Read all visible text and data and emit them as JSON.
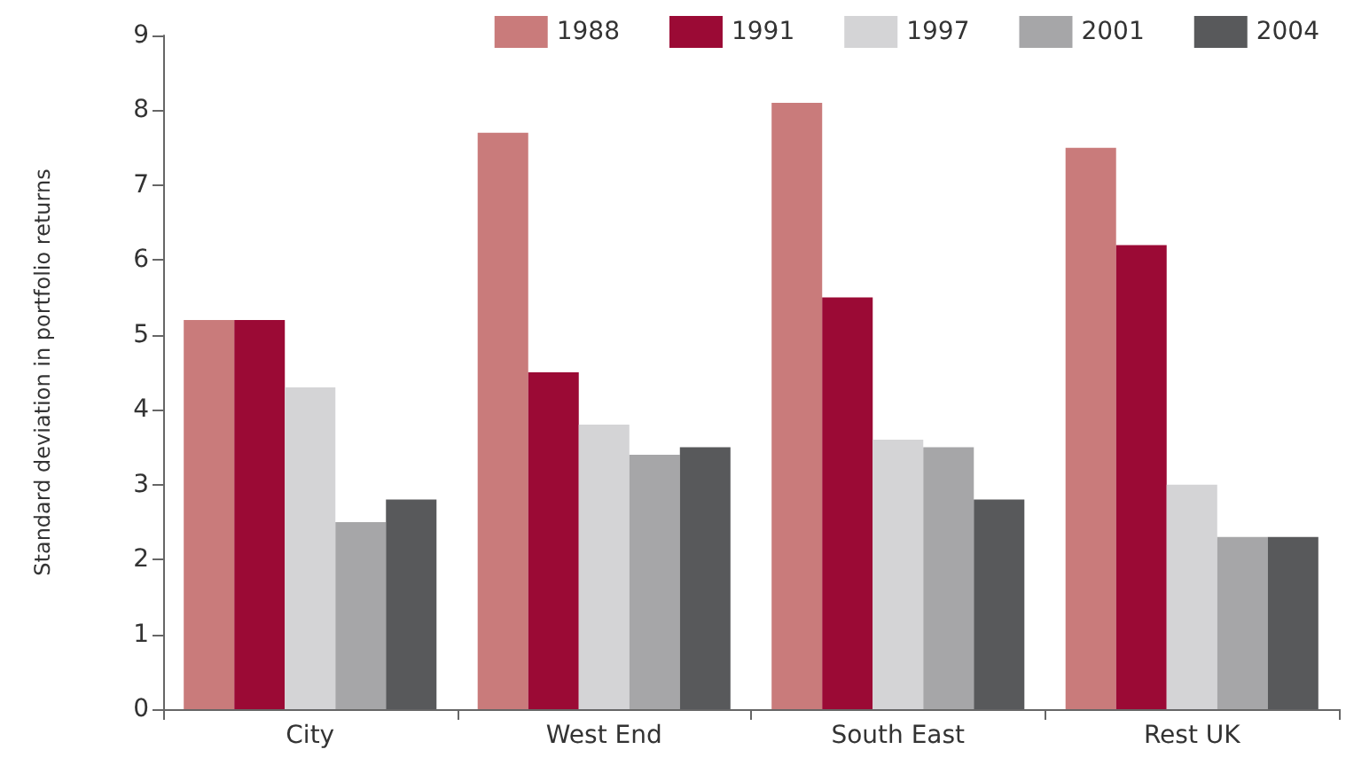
{
  "chart_data": {
    "type": "bar",
    "ylabel": "Standard deviation in portfolio returns",
    "categories": [
      "City",
      "West End",
      "South East",
      "Rest UK"
    ],
    "series": [
      {
        "name": "1988",
        "color": "#c97b7b",
        "values": [
          5.2,
          7.7,
          8.1,
          7.5
        ]
      },
      {
        "name": "1991",
        "color": "#9b0a35",
        "values": [
          5.2,
          4.5,
          5.5,
          6.2
        ]
      },
      {
        "name": "1997",
        "color": "#d4d4d6",
        "values": [
          4.3,
          3.8,
          3.6,
          3.0
        ]
      },
      {
        "name": "2001",
        "color": "#a6a6a8",
        "values": [
          2.5,
          3.4,
          3.5,
          2.3
        ]
      },
      {
        "name": "2004",
        "color": "#58595b",
        "values": [
          2.8,
          3.5,
          2.8,
          2.3
        ]
      }
    ],
    "ylim": [
      0,
      9
    ],
    "yticks": [
      0,
      1,
      2,
      3,
      4,
      5,
      6,
      7,
      8,
      9
    ],
    "grid": false,
    "legend": "top right"
  }
}
